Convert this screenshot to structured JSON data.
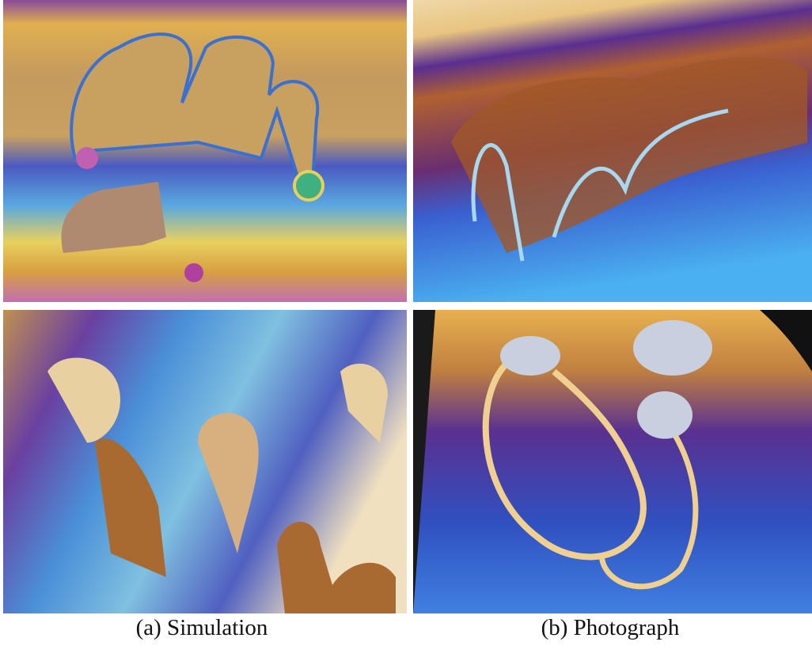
{
  "figure": {
    "captions": [
      "(a) Simulation",
      "(b) Photograph"
    ]
  }
}
